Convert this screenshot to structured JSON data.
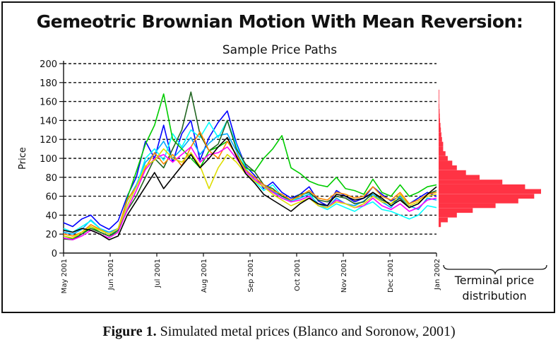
{
  "chart_data": {
    "type": "line",
    "title": "Gemeotric Brownian Motion With Mean Reversion:",
    "subtitle": "Sample Price Paths",
    "xlabel": "",
    "ylabel": "Price",
    "ylim": [
      0,
      200
    ],
    "y_ticks": [
      0,
      20,
      40,
      60,
      80,
      100,
      120,
      140,
      160,
      180,
      200
    ],
    "x_tick_labels": [
      "May 2001",
      "Jun 2001",
      "Jul 2001",
      "Aug 2001",
      "Sep 2001",
      "Oct 2001",
      "Nov 2001",
      "Dec 2001",
      "Jan 2002"
    ],
    "grid": true,
    "series": [
      {
        "color": "#0000ff",
        "values": [
          32,
          28,
          36,
          40,
          30,
          25,
          34,
          60,
          80,
          118,
          100,
          135,
          96,
          126,
          140,
          98,
          122,
          138,
          150,
          116,
          92,
          82,
          68,
          75,
          64,
          58,
          62,
          70,
          55,
          50,
          66,
          60,
          54,
          58,
          70,
          62,
          55,
          60,
          52,
          58,
          64,
          60
        ]
      },
      {
        "color": "#00aaff",
        "values": [
          22,
          20,
          25,
          35,
          26,
          22,
          26,
          55,
          72,
          96,
          105,
          118,
          100,
          110,
          122,
          104,
          116,
          124,
          126,
          108,
          86,
          80,
          72,
          65,
          60,
          55,
          58,
          62,
          52,
          48,
          58,
          52,
          50,
          55,
          62,
          54,
          48,
          60,
          50,
          46,
          58,
          56
        ]
      },
      {
        "color": "#00ffff",
        "values": [
          26,
          22,
          28,
          34,
          26,
          20,
          24,
          50,
          70,
          100,
          110,
          98,
          126,
          112,
          130,
          122,
          138,
          122,
          140,
          114,
          90,
          76,
          66,
          72,
          60,
          54,
          60,
          64,
          50,
          46,
          52,
          48,
          44,
          50,
          54,
          46,
          44,
          40,
          36,
          40,
          50,
          48
        ]
      },
      {
        "color": "#00cc00",
        "values": [
          18,
          15,
          20,
          28,
          22,
          18,
          22,
          58,
          86,
          115,
          135,
          168,
          120,
          110,
          100,
          90,
          108,
          112,
          118,
          104,
          90,
          86,
          100,
          110,
          124,
          90,
          84,
          76,
          72,
          70,
          80,
          68,
          66,
          62,
          78,
          64,
          60,
          72,
          60,
          64,
          70,
          72
        ]
      },
      {
        "color": "#226622",
        "values": [
          15,
          14,
          20,
          26,
          22,
          18,
          24,
          45,
          60,
          80,
          100,
          90,
          110,
          130,
          170,
          125,
          108,
          115,
          140,
          110,
          94,
          86,
          72,
          68,
          60,
          56,
          62,
          64,
          56,
          54,
          60,
          58,
          52,
          54,
          64,
          56,
          52,
          58,
          48,
          52,
          62,
          66
        ]
      },
      {
        "color": "#ff8800",
        "values": [
          20,
          18,
          22,
          30,
          25,
          20,
          26,
          56,
          70,
          90,
          106,
          94,
          104,
          92,
          112,
          128,
          108,
          100,
          118,
          104,
          88,
          80,
          72,
          66,
          62,
          56,
          60,
          66,
          58,
          56,
          64,
          62,
          58,
          60,
          70,
          60,
          56,
          64,
          52,
          56,
          62,
          64
        ]
      },
      {
        "color": "#ff00ff",
        "values": [
          16,
          14,
          18,
          24,
          20,
          16,
          22,
          46,
          66,
          88,
          100,
          104,
          96,
          104,
          112,
          96,
          104,
          106,
          112,
          100,
          86,
          78,
          70,
          64,
          58,
          54,
          56,
          60,
          50,
          48,
          56,
          52,
          48,
          50,
          58,
          50,
          46,
          52,
          44,
          48,
          56,
          58
        ]
      },
      {
        "color": "#dddd00",
        "values": [
          18,
          16,
          22,
          28,
          24,
          20,
          26,
          50,
          70,
          92,
          98,
          110,
          100,
          96,
          106,
          92,
          68,
          90,
          104,
          96,
          84,
          76,
          70,
          62,
          56,
          50,
          54,
          58,
          50,
          48,
          54,
          52,
          48,
          52,
          60,
          54,
          52,
          62,
          50,
          54,
          60,
          62
        ]
      },
      {
        "color": "#000000",
        "values": [
          24,
          22,
          26,
          24,
          20,
          14,
          18,
          40,
          55,
          70,
          85,
          68,
          80,
          92,
          104,
          90,
          100,
          112,
          122,
          102,
          84,
          74,
          62,
          56,
          50,
          44,
          52,
          58,
          52,
          50,
          62,
          60,
          56,
          58,
          64,
          58,
          50,
          56,
          48,
          52,
          62,
          70
        ]
      }
    ],
    "distribution": {
      "label": "Terminal price distribution",
      "label_lines": [
        "Terminal price",
        "distribution"
      ],
      "color": "#ff3344",
      "bins": [
        {
          "price": 30,
          "freq": 1
        },
        {
          "price": 35,
          "freq": 4
        },
        {
          "price": 40,
          "freq": 8
        },
        {
          "price": 45,
          "freq": 15
        },
        {
          "price": 50,
          "freq": 25
        },
        {
          "price": 55,
          "freq": 35
        },
        {
          "price": 60,
          "freq": 42
        },
        {
          "price": 65,
          "freq": 45
        },
        {
          "price": 70,
          "freq": 38
        },
        {
          "price": 75,
          "freq": 28
        },
        {
          "price": 80,
          "freq": 18
        },
        {
          "price": 85,
          "freq": 12
        },
        {
          "price": 90,
          "freq": 8
        },
        {
          "price": 95,
          "freq": 6
        },
        {
          "price": 100,
          "freq": 4
        },
        {
          "price": 105,
          "freq": 3
        },
        {
          "price": 110,
          "freq": 2
        },
        {
          "price": 115,
          "freq": 2
        },
        {
          "price": 120,
          "freq": 1.5
        },
        {
          "price": 125,
          "freq": 1.2
        },
        {
          "price": 130,
          "freq": 1
        },
        {
          "price": 135,
          "freq": 0.8
        },
        {
          "price": 140,
          "freq": 0.6
        },
        {
          "price": 145,
          "freq": 0.5
        },
        {
          "price": 150,
          "freq": 0.4
        },
        {
          "price": 155,
          "freq": 0.3
        },
        {
          "price": 160,
          "freq": 0.25
        },
        {
          "price": 165,
          "freq": 0.2
        },
        {
          "price": 170,
          "freq": 0.15
        }
      ]
    }
  },
  "caption": {
    "label": "Figure 1.",
    "text": " Simulated metal prices (Blanco and Soronow, 2001)"
  }
}
